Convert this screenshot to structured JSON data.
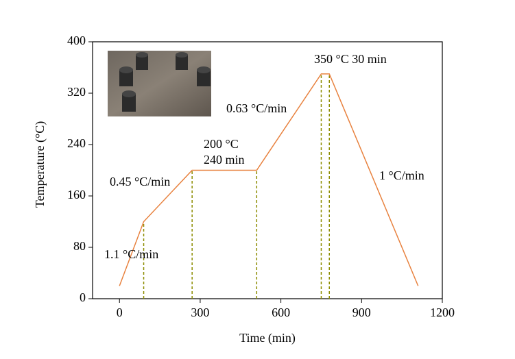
{
  "chart_data": {
    "type": "line",
    "x_label": "Time (min)",
    "y_label": "Temperature (°C)",
    "x": [
      0,
      90,
      270,
      510,
      750,
      780,
      1110
    ],
    "series": [
      {
        "color": "#e8823f",
        "values": [
          20,
          120,
          200,
          200,
          350,
          350,
          20
        ]
      }
    ],
    "drop_lines": {
      "color": "#8c8c00",
      "points": [
        1,
        2,
        3,
        4,
        5
      ]
    },
    "xlim": [
      -100,
      1200
    ],
    "xticks": [
      0,
      300,
      600,
      900,
      1200
    ],
    "ylim": [
      0,
      400
    ],
    "yticks": [
      0,
      80,
      160,
      240,
      320,
      400
    ],
    "annotations": [
      {
        "text": "1.1 °C/min",
        "color": "#e8231b"
      },
      {
        "text": "0.45 °C/min",
        "color": "#e8231b"
      },
      {
        "text": "200 °C",
        "color": "#8c8c00"
      },
      {
        "text": "240 min",
        "color": "#8c8c00"
      },
      {
        "text": "0.63 °C/min",
        "color": "#e8231b"
      },
      {
        "text": "350 °C 30 min",
        "color": "#8c8c00"
      },
      {
        "text": "1 °C/min",
        "color": "#e8231b"
      }
    ]
  }
}
